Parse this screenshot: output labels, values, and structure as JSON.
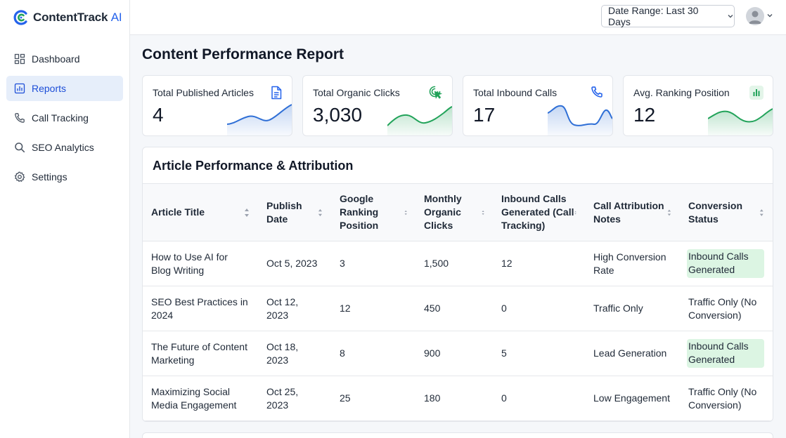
{
  "app": {
    "name": "ContentTrack",
    "name_suffix": "AI",
    "brand_color": "#2563eb",
    "accent_green": "#22a35a"
  },
  "sidebar": {
    "items": [
      {
        "label": "Dashboard",
        "icon": "dashboard-grid-icon",
        "active": false
      },
      {
        "label": "Reports",
        "icon": "bar-chart-icon",
        "active": true
      },
      {
        "label": "Call Tracking",
        "icon": "phone-icon",
        "active": false
      },
      {
        "label": "SEO Analytics",
        "icon": "search-icon",
        "active": false
      },
      {
        "label": "Settings",
        "icon": "gear-icon",
        "active": false
      }
    ]
  },
  "topbar": {
    "date_range_label": "Date Range: Last 30 Days"
  },
  "page": {
    "title": "Content Performance Report"
  },
  "cards": [
    {
      "label": "Total Published Articles",
      "value": "4",
      "icon": "document-icon",
      "trend_color": "#2f6fd6"
    },
    {
      "label": "Total Organic Clicks",
      "value": "3,030",
      "icon": "cursor-click-icon",
      "trend_color": "#22a35a"
    },
    {
      "label": "Total Inbound Calls",
      "value": "17",
      "icon": "phone-icon",
      "trend_color": "#2f6fd6"
    },
    {
      "label": "Avg. Ranking Position",
      "value": "12",
      "icon": "bar-chart-icon",
      "trend_color": "#22a35a"
    }
  ],
  "table": {
    "title": "Article Performance & Attribution",
    "columns": [
      "Article Title",
      "Publish Date",
      "Google Ranking Position",
      "Monthly Organic Clicks",
      "Inbound Calls Generated (Call Tracking)",
      "Call Attribution Notes",
      "Conversion Status"
    ],
    "rows": [
      {
        "title": "How to Use AI for Blog Writing",
        "date": "Oct 5, 2023",
        "rank": "3",
        "clicks": "1,500",
        "calls": "12",
        "notes": "High Conversion Rate",
        "status": "Inbound Calls Generated",
        "status_highlight": true
      },
      {
        "title": "SEO Best Practices in 2024",
        "date": "Oct 12, 2023",
        "rank": "12",
        "clicks": "450",
        "calls": "0",
        "notes": "Traffic Only",
        "status": "Traffic Only (No Conversion)",
        "status_highlight": false
      },
      {
        "title": "The Future of Content Marketing",
        "date": "Oct 18, 2023",
        "rank": "8",
        "clicks": "900",
        "calls": "5",
        "notes": "Lead Generation",
        "status": "Inbound Calls Generated",
        "status_highlight": true
      },
      {
        "title": "Maximizing Social Media Engagement",
        "date": "Oct 25, 2023",
        "rank": "25",
        "clicks": "180",
        "calls": "0",
        "notes": "Low Engagement",
        "status": "Traffic Only (No Conversion)",
        "status_highlight": false
      }
    ]
  }
}
